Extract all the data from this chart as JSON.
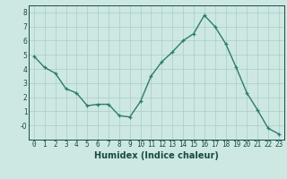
{
  "x": [
    0,
    1,
    2,
    3,
    4,
    5,
    6,
    7,
    8,
    9,
    10,
    11,
    12,
    13,
    14,
    15,
    16,
    17,
    18,
    19,
    20,
    21,
    22,
    23
  ],
  "y": [
    4.9,
    4.1,
    3.7,
    2.6,
    2.3,
    1.4,
    1.5,
    1.5,
    0.7,
    0.6,
    1.7,
    3.5,
    4.5,
    5.2,
    6.0,
    6.5,
    7.8,
    7.0,
    5.8,
    4.1,
    2.3,
    1.1,
    -0.2,
    -0.6
  ],
  "line_color": "#2d7b6e",
  "marker": "+",
  "bg_color": "#cde8e2",
  "grid_color": "#aaccc6",
  "xlabel": "Humidex (Indice chaleur)",
  "xlim": [
    -0.5,
    23.5
  ],
  "ylim": [
    -1.0,
    8.5
  ],
  "yticks": [
    0,
    1,
    2,
    3,
    4,
    5,
    6,
    7,
    8
  ],
  "ytick_labels": [
    "-0",
    "1",
    "2",
    "3",
    "4",
    "5",
    "6",
    "7",
    "8"
  ],
  "xticks": [
    0,
    1,
    2,
    3,
    4,
    5,
    6,
    7,
    8,
    9,
    10,
    11,
    12,
    13,
    14,
    15,
    16,
    17,
    18,
    19,
    20,
    21,
    22,
    23
  ],
  "font_color": "#1a4a44",
  "linewidth": 1.0,
  "markersize": 3.5,
  "tick_fontsize": 5.5,
  "xlabel_fontsize": 7.0
}
